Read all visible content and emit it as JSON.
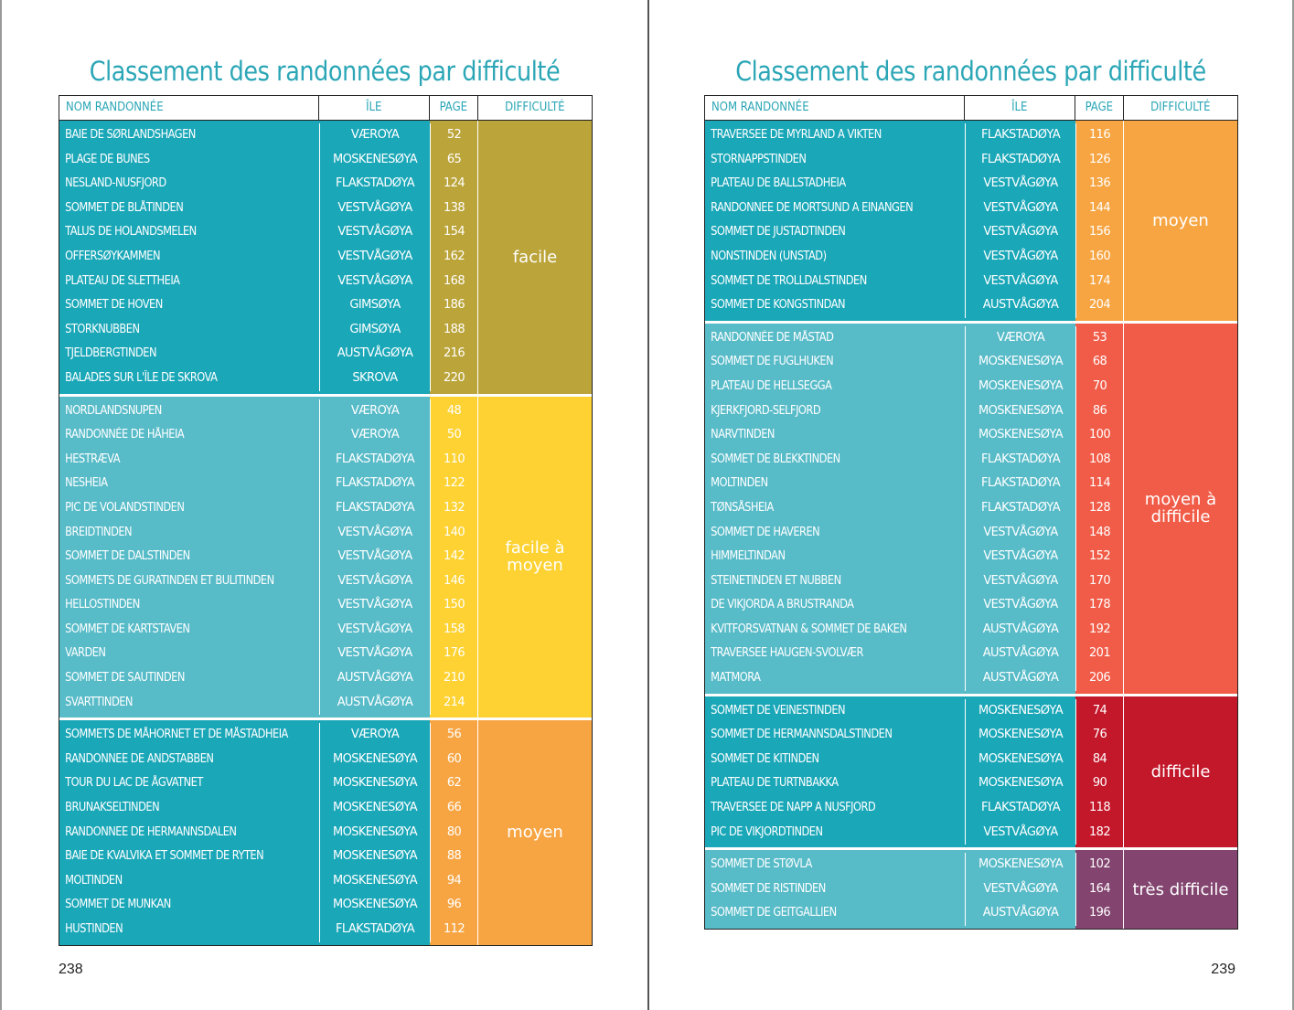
{
  "colors": {
    "teal_dark": "#1aa7b8",
    "teal_light": "#57bbc8",
    "facile": "#bba43a",
    "facile_a_moyen": "#fdd232",
    "moyen": "#f7a542",
    "moyen_a_difficile": "#f15c48",
    "difficile": "#c3172a",
    "tres_difficile": "#834570",
    "title": "#2ba6b6"
  },
  "pages": [
    {
      "title": "Classement des randonnées par difficulté",
      "page_number": "238",
      "headers": [
        "NOM RANDONNÉE",
        "ÎLE",
        "PAGE",
        "DIFFICULTÉ"
      ],
      "groups": [
        {
          "difficulty": "facile",
          "color": "#bba43a",
          "teal": "#1aa7b8",
          "rows": [
            [
              "BAIE DE SØRLANDSHAGEN",
              "VÆROYA",
              "52"
            ],
            [
              "PLAGE DE BUNES",
              "MOSKENESØYA",
              "65"
            ],
            [
              "NESLAND-NUSFJORD",
              "FLAKSTADØYA",
              "124"
            ],
            [
              "SOMMET DE BLÅTINDEN",
              "VESTVÅGØYA",
              "138"
            ],
            [
              "TALUS DE HOLANDSMELEN",
              "VESTVÅGØYA",
              "154"
            ],
            [
              "OFFERSØYKAMMEN",
              "VESTVÅGØYA",
              "162"
            ],
            [
              "PLATEAU DE SLETTHEIA",
              "VESTVÅGØYA",
              "168"
            ],
            [
              "SOMMET DE HOVEN",
              "GIMSØYA",
              "186"
            ],
            [
              "STORKNUBBEN",
              "GIMSØYA",
              "188"
            ],
            [
              "TJELDBERGTINDEN",
              "AUSTVÅGØYA",
              "216"
            ],
            [
              "BALADES SUR L'ÎLE DE SKROVA",
              "SKROVA",
              "220"
            ]
          ]
        },
        {
          "difficulty": "facile à\nmoyen",
          "color": "#fdd232",
          "teal": "#57bbc8",
          "rows": [
            [
              "NORDLANDSNUPEN",
              "VÆROYA",
              "48"
            ],
            [
              "RANDONNÉE DE HÅHEIA",
              "VÆROYA",
              "50"
            ],
            [
              "HESTRÆVA",
              "FLAKSTADØYA",
              "110"
            ],
            [
              "NESHEIA",
              "FLAKSTADØYA",
              "122"
            ],
            [
              "PIC DE VOLANDSTINDEN",
              "FLAKSTADØYA",
              "132"
            ],
            [
              "BREIDTINDEN",
              "VESTVÅGØYA",
              "140"
            ],
            [
              "SOMMET DE DALSTINDEN",
              "VESTVÅGØYA",
              "142"
            ],
            [
              "SOMMETS DE GURATINDEN ET BULITINDEN",
              "VESTVÅGØYA",
              "146"
            ],
            [
              "HELLOSTINDEN",
              "VESTVÅGØYA",
              "150"
            ],
            [
              "SOMMET DE KARTSTAVEN",
              "VESTVÅGØYA",
              "158"
            ],
            [
              "VARDEN",
              "VESTVÅGØYA",
              "176"
            ],
            [
              "SOMMET DE SAUTINDEN",
              "AUSTVÅGØYA",
              "210"
            ],
            [
              "SVARTTINDEN",
              "AUSTVÅGØYA",
              "214"
            ]
          ]
        },
        {
          "difficulty": "moyen",
          "color": "#f7a542",
          "teal": "#1aa7b8",
          "rows": [
            [
              "SOMMETS DE MÅHORNET ET DE MÅSTADHEIA",
              "VÆROYA",
              "56"
            ],
            [
              "RANDONNEE DE ANDSTABBEN",
              "MOSKENESØYA",
              "60"
            ],
            [
              "TOUR DU LAC DE ÅGVATNET",
              "MOSKENESØYA",
              "62"
            ],
            [
              "BRUNAKSELTINDEN",
              "MOSKENESØYA",
              "66"
            ],
            [
              "RANDONNEE DE HERMANNSDALEN",
              "MOSKENESØYA",
              "80"
            ],
            [
              "BAIE DE KVALVIKA ET SOMMET DE RYTEN",
              "MOSKENESØYA",
              "88"
            ],
            [
              "MOLTINDEN",
              "MOSKENESØYA",
              "94"
            ],
            [
              "SOMMET DE MUNKAN",
              "MOSKENESØYA",
              "96"
            ],
            [
              "HUSTINDEN",
              "FLAKSTADØYA",
              "112"
            ]
          ]
        }
      ]
    },
    {
      "title": "Classement des randonnées par difficulté",
      "page_number": "239",
      "headers": [
        "NOM RANDONNÉE",
        "ÎLE",
        "PAGE",
        "DIFFICULTÉ"
      ],
      "groups": [
        {
          "difficulty": "moyen",
          "color": "#f7a542",
          "teal": "#1aa7b8",
          "rows": [
            [
              "TRAVERSEE DE MYRLAND A VIKTEN",
              "FLAKSTADØYA",
              "116"
            ],
            [
              "STORNAPPSTINDEN",
              "FLAKSTADØYA",
              "126"
            ],
            [
              "PLATEAU DE BALLSTADHEIA",
              "VESTVÅGØYA",
              "136"
            ],
            [
              "RANDONNEE DE MORTSUND A EINANGEN",
              "VESTVÅGØYA",
              "144"
            ],
            [
              "SOMMET DE JUSTADTINDEN",
              "VESTVÅGØYA",
              "156"
            ],
            [
              "NONSTINDEN (UNSTAD)",
              "VESTVÅGØYA",
              "160"
            ],
            [
              "SOMMET DE TROLLDALSTINDEN",
              "VESTVÅGØYA",
              "174"
            ],
            [
              "SOMMET DE KONGSTINDAN",
              "AUSTVÅGØYA",
              "204"
            ]
          ]
        },
        {
          "difficulty": "moyen à\ndifficile",
          "color": "#f15c48",
          "teal": "#57bbc8",
          "rows": [
            [
              "RANDONNÉE DE MÅSTAD",
              "VÆROYA",
              "53"
            ],
            [
              "SOMMET DE FUGLHUKEN",
              "MOSKENESØYA",
              "68"
            ],
            [
              "PLATEAU DE HELLSEGGA",
              "MOSKENESØYA",
              "70"
            ],
            [
              "KJERKFJORD-SELFJORD",
              "MOSKENESØYA",
              "86"
            ],
            [
              "NARVTINDEN",
              "MOSKENESØYA",
              "100"
            ],
            [
              "SOMMET DE BLEKKTINDEN",
              "FLAKSTADØYA",
              "108"
            ],
            [
              "MOLTINDEN",
              "FLAKSTADØYA",
              "114"
            ],
            [
              "TØNSÅSHEIA",
              "FLAKSTADØYA",
              "128"
            ],
            [
              "SOMMET DE HAVEREN",
              "VESTVÅGØYA",
              "148"
            ],
            [
              "HIMMELTINDAN",
              "VESTVÅGØYA",
              "152"
            ],
            [
              "STEINETINDEN ET NUBBEN",
              "VESTVÅGØYA",
              "170"
            ],
            [
              "DE VIKJORDA A BRUSTRANDA",
              "VESTVÅGØYA",
              "178"
            ],
            [
              "KVITFORSVATNAN & SOMMET DE BAKEN",
              "AUSTVÅGØYA",
              "192"
            ],
            [
              "TRAVERSEE HAUGEN-SVOLVÆR",
              "AUSTVÅGØYA",
              "201"
            ],
            [
              "MATMORA",
              "AUSTVÅGØYA",
              "206"
            ]
          ]
        },
        {
          "difficulty": "difficile",
          "color": "#c3172a",
          "teal": "#1aa7b8",
          "rows": [
            [
              "SOMMET DE VEINESTINDEN",
              "MOSKENESØYA",
              "74"
            ],
            [
              "SOMMET DE HERMANNSDALSTINDEN",
              "MOSKENESØYA",
              "76"
            ],
            [
              "SOMMET DE KITINDEN",
              "MOSKENESØYA",
              "84"
            ],
            [
              "PLATEAU DE TURTNBAKKA",
              "MOSKENESØYA",
              "90"
            ],
            [
              "TRAVERSEE DE NAPP A NUSFJORD",
              "FLAKSTADØYA",
              "118"
            ],
            [
              "PIC DE VIKJORDTINDEN",
              "VESTVÅGØYA",
              "182"
            ]
          ]
        },
        {
          "difficulty": "très difficile",
          "color": "#834570",
          "teal": "#57bbc8",
          "rows": [
            [
              "SOMMET DE STØVLA",
              "MOSKENESØYA",
              "102"
            ],
            [
              "SOMMET DE RISTINDEN",
              "VESTVÅGØYA",
              "164"
            ],
            [
              "SOMMET DE GEITGALLIEN",
              "AUSTVÅGØYA",
              "196"
            ]
          ]
        }
      ]
    }
  ]
}
